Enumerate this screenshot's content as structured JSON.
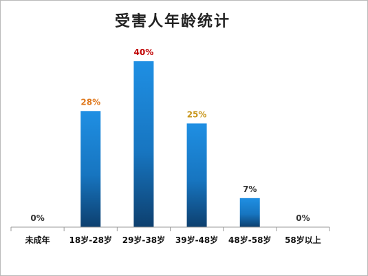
{
  "chart_data": {
    "type": "bar",
    "title": "受害人年龄统计",
    "categories": [
      "未成年",
      "18岁-28岁",
      "29岁-38岁",
      "39岁-48岁",
      "48岁-58岁",
      "58岁以上"
    ],
    "values": [
      0,
      28,
      40,
      25,
      7,
      0
    ],
    "data_labels": [
      "0%",
      "28%",
      "40%",
      "25%",
      "7%",
      "0%"
    ],
    "unit": "%",
    "ylim": [
      0,
      40
    ],
    "grid": false,
    "legend": "none",
    "colors": {
      "bar_top": "#1f8fe3",
      "bar_bottom": "#0d3f6e",
      "label_default": "#333333",
      "label_28": "#e07a1f",
      "label_40": "#c00000",
      "label_25": "#c8961a",
      "axis": "#9a9a9a"
    }
  }
}
